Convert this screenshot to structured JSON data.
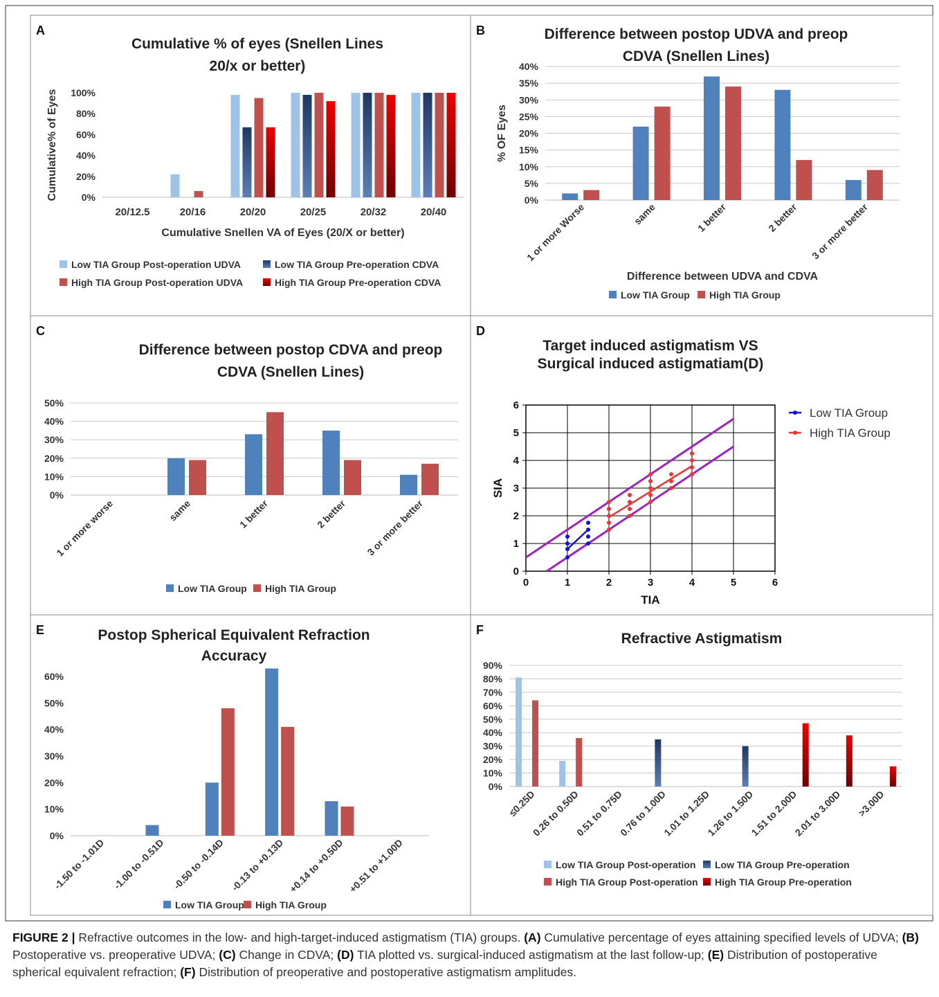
{
  "figure": {
    "caption": {
      "label": "FIGURE 2 |",
      "parts": [
        {
          "t": " Refractive outcomes in the low- and high-target-induced astigmatism (TIA) groups. "
        },
        {
          "b": "(A)"
        },
        {
          "t": " Cumulative percentage of eyes attaining specified levels of UDVA; "
        },
        {
          "b": "(B)"
        },
        {
          "t": " Postoperative vs. preoperative UDVA; "
        },
        {
          "b": "(C)"
        },
        {
          "t": " Change in CDVA; "
        },
        {
          "b": "(D)"
        },
        {
          "t": " TIA plotted vs. surgical-induced astigmatism at the last follow-up; "
        },
        {
          "b": "(E)"
        },
        {
          "t": " Distribution of postoperative spherical equivalent refraction; "
        },
        {
          "b": "(F)"
        },
        {
          "t": " Distribution of preoperative and postoperative astigmatism amplitudes."
        }
      ]
    }
  },
  "colors": {
    "low_post": "#9dc3e6",
    "low_pre": "#1f3864",
    "high_post": "#c0504d",
    "high_pre": "#e00000",
    "low": "#4f81bd",
    "high": "#c0504d",
    "scatter_low": "#1010e0",
    "scatter_high": "#ee3333",
    "band": "#a020c0"
  },
  "chart_data": [
    {
      "id": "A",
      "panel_label": "A",
      "type": "bar",
      "title": [
        "Cumulative % of eyes (Snellen Lines",
        "20/x or better)"
      ],
      "xlabel": "Cumulative Snellen VA of Eyes (20/X or better)",
      "ylabel": "Cumulative% of Eyes",
      "ylim": [
        0,
        100
      ],
      "yticks": [
        "0%",
        "20%",
        "40%",
        "60%",
        "80%",
        "100%"
      ],
      "grid": false,
      "categories": [
        "20/12.5",
        "20/16",
        "20/20",
        "20/25",
        "20/32",
        "20/40"
      ],
      "series": [
        {
          "name": "Low TIA Group Post-operation UDVA",
          "color": "low_post",
          "values": [
            0,
            22,
            98,
            100,
            100,
            100
          ]
        },
        {
          "name": "Low TIA Group  Pre-operation CDVA",
          "color": "low_pre",
          "values": [
            0,
            0,
            67,
            98,
            100,
            100
          ]
        },
        {
          "name": "High TIA Group  Post-operation UDVA",
          "color": "high_post",
          "values": [
            0,
            6,
            95,
            100,
            100,
            100
          ]
        },
        {
          "name": "High TIA Group Pre-operation CDVA",
          "color": "high_pre",
          "values": [
            0,
            0,
            67,
            92,
            98,
            100
          ]
        }
      ],
      "legend": "bottom"
    },
    {
      "id": "B",
      "panel_label": "B",
      "type": "bar",
      "title": [
        "Difference between  postop UDVA and preop",
        "CDVA (Snellen Lines)"
      ],
      "xlabel": "Difference between UDVA and CDVA",
      "ylabel": "% OF Eyes",
      "ylim": [
        0,
        40
      ],
      "yticks": [
        "0%",
        "5%",
        "10%",
        "15%",
        "20%",
        "25%",
        "30%",
        "35%",
        "40%"
      ],
      "grid": true,
      "categories": [
        "1 or more Worse",
        "same",
        "1 better",
        "2 better",
        "3 or more better"
      ],
      "series": [
        {
          "name": "Low TIA Group",
          "color": "low",
          "values": [
            2,
            22,
            37,
            33,
            6
          ]
        },
        {
          "name": "High TIA Group",
          "color": "high",
          "values": [
            3,
            28,
            34,
            12,
            9
          ]
        }
      ],
      "legend": "bottom"
    },
    {
      "id": "C",
      "panel_label": "C",
      "type": "bar",
      "title": [
        "Difference between  postop CDVA and preop",
        "CDVA (Snellen Lines)"
      ],
      "xlabel": "",
      "ylabel": "",
      "ylim": [
        0,
        50
      ],
      "yticks": [
        "0%",
        "10%",
        "20%",
        "30%",
        "40%",
        "50%"
      ],
      "grid": true,
      "categories": [
        "1 or more worse",
        "same",
        "1 better",
        "2 better",
        "3 or more better"
      ],
      "series": [
        {
          "name": "Low TIA Group",
          "color": "low",
          "values": [
            0,
            20,
            33,
            35,
            11
          ]
        },
        {
          "name": "High TIA Group",
          "color": "high",
          "values": [
            0,
            19,
            45,
            19,
            17
          ]
        }
      ],
      "legend": "bottom"
    },
    {
      "id": "D",
      "panel_label": "D",
      "type": "scatter",
      "title": [
        "Target induced astigmatism VS",
        "Surgical induced astigmatiam(D)"
      ],
      "xlabel": "TIA",
      "ylabel": "SIA",
      "xlim": [
        0,
        6
      ],
      "ylim": [
        0,
        6
      ],
      "ticks": [
        "0",
        "1",
        "2",
        "3",
        "4",
        "5",
        "6"
      ],
      "grid": true,
      "series": [
        {
          "name": "Low TIA Group",
          "color": "scatter_low",
          "points": [
            [
              1,
              0.5
            ],
            [
              1,
              0.8
            ],
            [
              1,
              1.0
            ],
            [
              1,
              1.25
            ],
            [
              1.5,
              1.0
            ],
            [
              1.5,
              1.25
            ],
            [
              1.5,
              1.5
            ],
            [
              1.5,
              1.75
            ]
          ],
          "fit": [
            [
              1,
              0.8
            ],
            [
              1.5,
              1.5
            ]
          ]
        },
        {
          "name": "High TIA Group",
          "color": "scatter_high",
          "points": [
            [
              2,
              1.5
            ],
            [
              2,
              1.75
            ],
            [
              2,
              2.0
            ],
            [
              2,
              2.25
            ],
            [
              2,
              2.5
            ],
            [
              2.5,
              2.0
            ],
            [
              2.5,
              2.25
            ],
            [
              2.5,
              2.5
            ],
            [
              2.5,
              2.75
            ],
            [
              3,
              2.5
            ],
            [
              3,
              2.75
            ],
            [
              3,
              3.0
            ],
            [
              3,
              3.25
            ],
            [
              3,
              3.5
            ],
            [
              3.5,
              3.0
            ],
            [
              3.5,
              3.25
            ],
            [
              3.5,
              3.5
            ],
            [
              4,
              3.5
            ],
            [
              4,
              3.75
            ],
            [
              4,
              4.0
            ],
            [
              4,
              4.25
            ]
          ],
          "fit": [
            [
              2,
              1.95
            ],
            [
              4,
              3.8
            ]
          ]
        }
      ],
      "bands": [
        [
          [
            0,
            0.5
          ],
          [
            5,
            5.5
          ]
        ],
        [
          [
            0.5,
            0
          ],
          [
            5,
            4.5
          ]
        ]
      ],
      "legend": "right"
    },
    {
      "id": "E",
      "panel_label": "E",
      "type": "bar",
      "title": [
        "Postop Spherical Equivalent Refraction",
        "Accuracy"
      ],
      "xlabel": "",
      "ylabel": "",
      "ylim": [
        0,
        60
      ],
      "yticks": [
        "0%",
        "10%",
        "20%",
        "30%",
        "40%",
        "50%",
        "60%"
      ],
      "grid": false,
      "categories": [
        "-1.50 to -1.01D",
        "-1.00 to -0.51D",
        "-0.50 to -0.14D",
        "-0.13 to +0.13D",
        "+0.14 to +0.50D",
        "+0.51 to +1.00D"
      ],
      "series": [
        {
          "name": "Low TIA Group",
          "color": "low",
          "values": [
            0,
            4,
            20,
            63,
            13,
            0
          ]
        },
        {
          "name": "High TIA Group",
          "color": "high",
          "values": [
            0,
            0,
            48,
            41,
            11,
            0
          ]
        }
      ],
      "legend": "bottom"
    },
    {
      "id": "F",
      "panel_label": "F",
      "type": "bar",
      "title": [
        "Refractive Astigmatism"
      ],
      "xlabel": "",
      "ylabel": "",
      "ylim": [
        0,
        90
      ],
      "yticks": [
        "0%",
        "10%",
        "20%",
        "30%",
        "40%",
        "50%",
        "60%",
        "70%",
        "80%",
        "90%"
      ],
      "grid": true,
      "categories": [
        "≤0.25D",
        "0.26 to 0.50D",
        "0.51 to 0.75D",
        "0.76 to 1.00D",
        "1.01 to 1.25D",
        "1.26 to 1.50D",
        "1.51 to 2.00D",
        "2.01 to 3.00D",
        ">3.00D"
      ],
      "series": [
        {
          "name": "Low TIA Group Post-operation",
          "color": "low_post",
          "values": [
            81,
            19,
            0,
            0,
            0,
            0,
            0,
            0,
            0
          ]
        },
        {
          "name": "Low TIA Group Pre-operation",
          "color": "low_pre",
          "values": [
            0,
            0,
            0,
            35,
            0,
            30,
            0,
            0,
            0
          ]
        },
        {
          "name": "High TIA Group Post-operation",
          "color": "high_post",
          "values": [
            64,
            36,
            0,
            0,
            0,
            0,
            0,
            0,
            0
          ]
        },
        {
          "name": "High TIA Group Pre-operation",
          "color": "high_pre",
          "values": [
            0,
            0,
            0,
            0,
            0,
            0,
            47,
            38,
            15
          ]
        }
      ],
      "legend": "bottom"
    }
  ]
}
